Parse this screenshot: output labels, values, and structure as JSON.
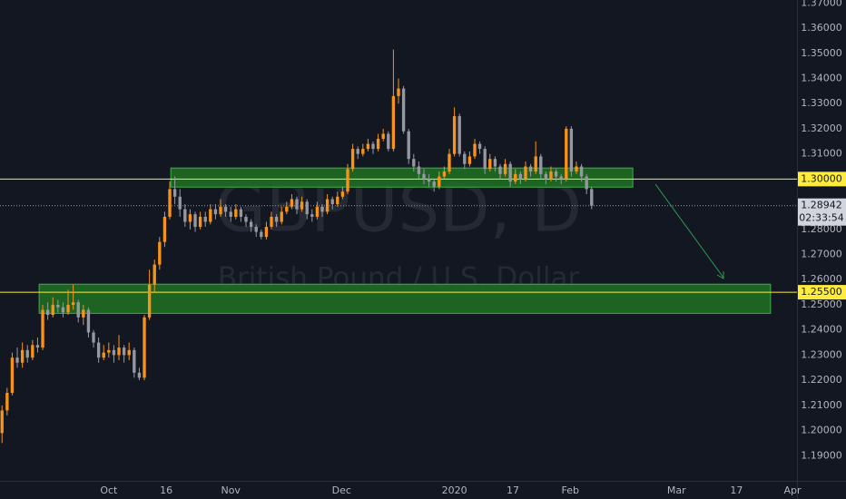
{
  "chart_data": {
    "type": "candlestick",
    "watermark": "GBPUSD, D",
    "watermark_subtitle": "British Pound / U.S. Dollar",
    "up_color": "#f7931a",
    "down_color": "#9598a1",
    "xlim": [
      -0.4,
      156.4
    ],
    "ylim": [
      1.18,
      1.3712
    ],
    "grid": false,
    "xticks": [
      {
        "value": 21,
        "label": "Oct"
      },
      {
        "value": 32.3,
        "label": "16"
      },
      {
        "value": 45,
        "label": "Nov"
      },
      {
        "value": 66.8,
        "label": "Dec"
      },
      {
        "value": 89,
        "label": "2020"
      },
      {
        "value": 100.5,
        "label": "17"
      },
      {
        "value": 111.8,
        "label": "Feb"
      },
      {
        "value": 132.7,
        "label": "Mar"
      },
      {
        "value": 144.5,
        "label": "17"
      },
      {
        "value": 155.5,
        "label": "Apr"
      }
    ],
    "yticks": [
      {
        "value": 1.19,
        "label": "1.19000"
      },
      {
        "value": 1.2,
        "label": "1.20000"
      },
      {
        "value": 1.21,
        "label": "1.21000"
      },
      {
        "value": 1.22,
        "label": "1.22000"
      },
      {
        "value": 1.23,
        "label": "1.23000"
      },
      {
        "value": 1.24,
        "label": "1.24000"
      },
      {
        "value": 1.25,
        "label": "1.25000"
      },
      {
        "value": 1.26,
        "label": "1.26000"
      },
      {
        "value": 1.27,
        "label": "1.27000"
      },
      {
        "value": 1.28,
        "label": "1.28000"
      },
      {
        "value": 1.29,
        "label": "1.29000"
      },
      {
        "value": 1.3,
        "label": "1.30000"
      },
      {
        "value": 1.31,
        "label": "1.31000"
      },
      {
        "value": 1.32,
        "label": "1.32000"
      },
      {
        "value": 1.33,
        "label": "1.33000"
      },
      {
        "value": 1.34,
        "label": "1.34000"
      },
      {
        "value": 1.35,
        "label": "1.35000"
      },
      {
        "value": 1.36,
        "label": "1.36000"
      },
      {
        "value": 1.37,
        "label": "1.37000"
      }
    ],
    "zones": [
      {
        "x": [
          33.2,
          124.1
        ],
        "y": [
          1.2968,
          1.3044
        ],
        "color": "#1f6b22"
      },
      {
        "x": [
          7.3,
          151.2
        ],
        "y": [
          1.2466,
          1.2582
        ],
        "color": "#1f6b22"
      }
    ],
    "levels": [
      {
        "value": 1.3,
        "label": "1.30000",
        "color": "#ffeb3b"
      },
      {
        "value": 1.255,
        "label": "1.25500",
        "color": "#ffeb3b"
      }
    ],
    "last_price": {
      "value": 1.28942,
      "label": "1.28942",
      "countdown": "02:33:54"
    },
    "candles": [
      [
        1.199,
        1.21,
        1.195,
        1.208
      ],
      [
        1.208,
        1.217,
        1.206,
        1.215
      ],
      [
        1.215,
        1.231,
        1.214,
        1.229
      ],
      [
        1.229,
        1.233,
        1.225,
        1.227
      ],
      [
        1.227,
        1.235,
        1.225,
        1.232
      ],
      [
        1.232,
        1.234,
        1.227,
        1.229
      ],
      [
        1.229,
        1.236,
        1.228,
        1.234
      ],
      [
        1.234,
        1.237,
        1.231,
        1.233
      ],
      [
        1.233,
        1.25,
        1.232,
        1.248
      ],
      [
        1.248,
        1.251,
        1.244,
        1.246
      ],
      [
        1.246,
        1.253,
        1.245,
        1.25
      ],
      [
        1.25,
        1.252,
        1.247,
        1.249
      ],
      [
        1.249,
        1.251,
        1.245,
        1.247
      ],
      [
        1.247,
        1.256,
        1.246,
        1.25
      ],
      [
        1.25,
        1.258,
        1.248,
        1.251
      ],
      [
        1.251,
        1.252,
        1.243,
        1.245
      ],
      [
        1.245,
        1.25,
        1.242,
        1.248
      ],
      [
        1.248,
        1.249,
        1.237,
        1.239
      ],
      [
        1.239,
        1.24,
        1.233,
        1.235
      ],
      [
        1.235,
        1.237,
        1.227,
        1.229
      ],
      [
        1.229,
        1.234,
        1.228,
        1.231
      ],
      [
        1.231,
        1.235,
        1.229,
        1.232
      ],
      [
        1.232,
        1.234,
        1.227,
        1.23
      ],
      [
        1.23,
        1.238,
        1.228,
        1.233
      ],
      [
        1.233,
        1.234,
        1.227,
        1.23
      ],
      [
        1.23,
        1.235,
        1.228,
        1.232
      ],
      [
        1.232,
        1.233,
        1.221,
        1.223
      ],
      [
        1.223,
        1.225,
        1.22,
        1.221
      ],
      [
        1.221,
        1.246,
        1.22,
        1.245
      ],
      [
        1.245,
        1.264,
        1.244,
        1.258
      ],
      [
        1.258,
        1.268,
        1.255,
        1.266
      ],
      [
        1.266,
        1.277,
        1.264,
        1.275
      ],
      [
        1.275,
        1.287,
        1.273,
        1.285
      ],
      [
        1.285,
        1.299,
        1.284,
        1.296
      ],
      [
        1.296,
        1.301,
        1.29,
        1.293
      ],
      [
        1.293,
        1.296,
        1.285,
        1.288
      ],
      [
        1.288,
        1.29,
        1.281,
        1.283
      ],
      [
        1.283,
        1.288,
        1.28,
        1.286
      ],
      [
        1.286,
        1.287,
        1.279,
        1.281
      ],
      [
        1.281,
        1.287,
        1.28,
        1.285
      ],
      [
        1.285,
        1.287,
        1.281,
        1.283
      ],
      [
        1.283,
        1.29,
        1.282,
        1.288
      ],
      [
        1.288,
        1.29,
        1.284,
        1.286
      ],
      [
        1.286,
        1.292,
        1.285,
        1.289
      ],
      [
        1.289,
        1.29,
        1.285,
        1.287
      ],
      [
        1.287,
        1.289,
        1.283,
        1.285
      ],
      [
        1.285,
        1.29,
        1.284,
        1.288
      ],
      [
        1.288,
        1.289,
        1.283,
        1.285
      ],
      [
        1.285,
        1.286,
        1.281,
        1.283
      ],
      [
        1.283,
        1.284,
        1.279,
        1.281
      ],
      [
        1.281,
        1.282,
        1.277,
        1.279
      ],
      [
        1.279,
        1.28,
        1.276,
        1.277
      ],
      [
        1.277,
        1.283,
        1.276,
        1.281
      ],
      [
        1.281,
        1.287,
        1.28,
        1.285
      ],
      [
        1.285,
        1.286,
        1.281,
        1.283
      ],
      [
        1.283,
        1.289,
        1.282,
        1.287
      ],
      [
        1.287,
        1.291,
        1.286,
        1.289
      ],
      [
        1.289,
        1.294,
        1.288,
        1.292
      ],
      [
        1.292,
        1.293,
        1.286,
        1.288
      ],
      [
        1.288,
        1.293,
        1.287,
        1.291
      ],
      [
        1.291,
        1.292,
        1.284,
        1.286
      ],
      [
        1.286,
        1.288,
        1.283,
        1.285
      ],
      [
        1.285,
        1.291,
        1.284,
        1.289
      ],
      [
        1.289,
        1.29,
        1.285,
        1.287
      ],
      [
        1.287,
        1.294,
        1.286,
        1.292
      ],
      [
        1.292,
        1.293,
        1.288,
        1.29
      ],
      [
        1.29,
        1.295,
        1.289,
        1.293
      ],
      [
        1.293,
        1.297,
        1.292,
        1.295
      ],
      [
        1.295,
        1.306,
        1.294,
        1.304
      ],
      [
        1.304,
        1.314,
        1.303,
        1.312
      ],
      [
        1.312,
        1.313,
        1.308,
        1.31
      ],
      [
        1.31,
        1.314,
        1.309,
        1.312
      ],
      [
        1.312,
        1.316,
        1.311,
        1.314
      ],
      [
        1.314,
        1.315,
        1.31,
        1.312
      ],
      [
        1.312,
        1.318,
        1.311,
        1.316
      ],
      [
        1.316,
        1.32,
        1.315,
        1.318
      ],
      [
        1.318,
        1.319,
        1.311,
        1.312
      ],
      [
        1.312,
        1.3515,
        1.311,
        1.333
      ],
      [
        1.333,
        1.34,
        1.33,
        1.336
      ],
      [
        1.336,
        1.337,
        1.318,
        1.319
      ],
      [
        1.319,
        1.32,
        1.306,
        1.308
      ],
      [
        1.308,
        1.31,
        1.303,
        1.305
      ],
      [
        1.305,
        1.307,
        1.3,
        1.302
      ],
      [
        1.302,
        1.304,
        1.298,
        1.3
      ],
      [
        1.3,
        1.302,
        1.297,
        1.299
      ],
      [
        1.299,
        1.3,
        1.295,
        1.297
      ],
      [
        1.297,
        1.303,
        1.296,
        1.301
      ],
      [
        1.301,
        1.305,
        1.3,
        1.303
      ],
      [
        1.303,
        1.312,
        1.302,
        1.31
      ],
      [
        1.31,
        1.3285,
        1.309,
        1.325
      ],
      [
        1.325,
        1.326,
        1.309,
        1.31
      ],
      [
        1.31,
        1.311,
        1.304,
        1.306
      ],
      [
        1.306,
        1.311,
        1.305,
        1.309
      ],
      [
        1.309,
        1.316,
        1.308,
        1.314
      ],
      [
        1.314,
        1.315,
        1.31,
        1.312
      ],
      [
        1.312,
        1.313,
        1.302,
        1.304
      ],
      [
        1.304,
        1.31,
        1.303,
        1.308
      ],
      [
        1.308,
        1.309,
        1.303,
        1.305
      ],
      [
        1.305,
        1.306,
        1.3,
        1.302
      ],
      [
        1.302,
        1.308,
        1.301,
        1.306
      ],
      [
        1.306,
        1.307,
        1.297,
        1.299
      ],
      [
        1.299,
        1.304,
        1.298,
        1.302
      ],
      [
        1.302,
        1.303,
        1.298,
        1.3
      ],
      [
        1.3,
        1.307,
        1.299,
        1.305
      ],
      [
        1.305,
        1.306,
        1.301,
        1.303
      ],
      [
        1.303,
        1.315,
        1.302,
        1.309
      ],
      [
        1.309,
        1.31,
        1.3,
        1.302
      ],
      [
        1.302,
        1.303,
        1.298,
        1.3
      ],
      [
        1.3,
        1.305,
        1.299,
        1.303
      ],
      [
        1.303,
        1.304,
        1.299,
        1.301
      ],
      [
        1.301,
        1.302,
        1.298,
        1.3
      ],
      [
        1.3,
        1.321,
        1.299,
        1.32
      ],
      [
        1.32,
        1.321,
        1.301,
        1.303
      ],
      [
        1.303,
        1.307,
        1.302,
        1.305
      ],
      [
        1.305,
        1.306,
        1.299,
        1.301
      ],
      [
        1.301,
        1.302,
        1.294,
        1.296
      ],
      [
        1.296,
        1.297,
        1.288,
        1.2894
      ]
    ]
  }
}
